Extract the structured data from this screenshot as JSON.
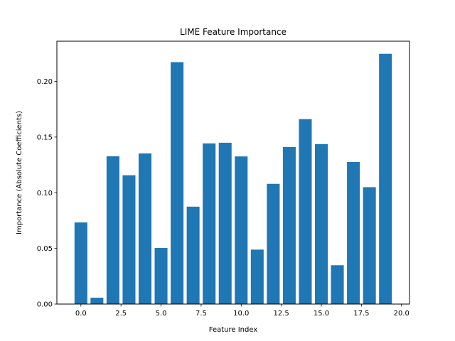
{
  "chart_data": {
    "type": "bar",
    "title": "LIME Feature Importance",
    "xlabel": "Feature Index",
    "ylabel": "Importance (Absolute Coefficients)",
    "x": [
      0,
      1,
      2,
      3,
      4,
      5,
      6,
      7,
      8,
      9,
      10,
      11,
      12,
      13,
      14,
      15,
      16,
      17,
      18,
      19
    ],
    "values": [
      0.0733,
      0.0057,
      0.1327,
      0.1157,
      0.1353,
      0.0504,
      0.2173,
      0.0875,
      0.1443,
      0.1449,
      0.1326,
      0.0489,
      0.108,
      0.1411,
      0.1661,
      0.1437,
      0.0349,
      0.1276,
      0.105,
      0.2248
    ],
    "xlim": [
      -1.5,
      20.5
    ],
    "ylim": [
      0,
      0.2361
    ],
    "xticks": [
      0,
      2.5,
      5,
      7.5,
      10,
      12.5,
      15,
      17.5,
      20
    ],
    "xtick_labels": [
      "0.0",
      "2.5",
      "5.0",
      "7.5",
      "10.0",
      "12.5",
      "15.0",
      "17.5",
      "20.0"
    ],
    "yticks": [
      0,
      0.05,
      0.1,
      0.15,
      0.2
    ],
    "ytick_labels": [
      "0.00",
      "0.05",
      "0.10",
      "0.15",
      "0.20"
    ],
    "bar_color": "#1f77b4",
    "grid": false,
    "legend": false
  }
}
